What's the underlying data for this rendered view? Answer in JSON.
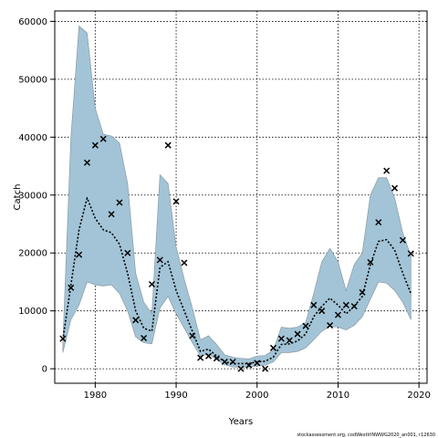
{
  "chart_data": {
    "type": "line",
    "title": "",
    "xlabel": "Years",
    "ylabel": "Catch",
    "xlim": [
      1975,
      2021
    ],
    "ylim": [
      -2500,
      61800
    ],
    "xticks": [
      1980,
      1990,
      2000,
      2010,
      2020
    ],
    "yticks": [
      0,
      10000,
      20000,
      30000,
      40000,
      50000,
      60000
    ],
    "grid": true,
    "legend": "none",
    "source_note": "stockassessment.org, codWestIrlNWWG2020_an001, r12630",
    "colors": {
      "band_fill": "#a2c4d6",
      "band_edge": "#8a9aa4",
      "line": "#000000",
      "points": "#000000",
      "grid": "#000000"
    },
    "series": [
      {
        "kind": "confidence-band",
        "x": [
          1976,
          1977,
          1978,
          1979,
          1980,
          1981,
          1982,
          1983,
          1984,
          1985,
          1986,
          1987,
          1988,
          1989,
          1990,
          1991,
          1992,
          1993,
          1994,
          1995,
          1996,
          1997,
          1998,
          1999,
          2000,
          2001,
          2002,
          2003,
          2004,
          2005,
          2006,
          2007,
          2008,
          2009,
          2010,
          2011,
          2012,
          2013,
          2014,
          2015,
          2016,
          2017,
          2018,
          2019
        ],
        "upper": [
          4500,
          40000,
          59200,
          58000,
          45000,
          40500,
          40200,
          39000,
          32000,
          16500,
          11500,
          9500,
          33500,
          32000,
          21000,
          15500,
          10500,
          5000,
          5700,
          4200,
          2400,
          2000,
          1800,
          1700,
          2200,
          2300,
          3200,
          7200,
          7000,
          7200,
          8000,
          13000,
          18500,
          20800,
          18500,
          13500,
          18000,
          20000,
          30000,
          33000,
          33000,
          29500,
          23500,
          19500
        ],
        "lower": [
          2800,
          8500,
          11000,
          15000,
          14500,
          14300,
          14500,
          13000,
          10000,
          5500,
          4500,
          4300,
          10500,
          12500,
          9500,
          7000,
          4500,
          2200,
          2500,
          1600,
          700,
          300,
          300,
          300,
          500,
          600,
          1200,
          2800,
          2800,
          3000,
          3600,
          5000,
          6500,
          7300,
          7200,
          6700,
          7500,
          9000,
          12000,
          15000,
          14800,
          13500,
          11500,
          8500
        ]
      },
      {
        "kind": "estimate-line",
        "x": [
          1976,
          1977,
          1978,
          1979,
          1980,
          1981,
          1982,
          1983,
          1984,
          1985,
          1986,
          1987,
          1988,
          1989,
          1990,
          1991,
          1992,
          1993,
          1994,
          1995,
          1996,
          1997,
          1998,
          1999,
          2000,
          2001,
          2002,
          2003,
          2004,
          2005,
          2006,
          2007,
          2008,
          2009,
          2010,
          2011,
          2012,
          2013,
          2014,
          2015,
          2016,
          2017,
          2018,
          2019
        ],
        "y": [
          5000,
          14500,
          24000,
          29500,
          26000,
          24000,
          23500,
          21500,
          16500,
          10000,
          7000,
          6500,
          17500,
          18500,
          13500,
          10000,
          6500,
          3000,
          3400,
          2200,
          1200,
          900,
          900,
          900,
          1200,
          1300,
          2000,
          4200,
          4300,
          4800,
          6000,
          9000,
          10800,
          12200,
          11000,
          9500,
          10800,
          12500,
          18000,
          22000,
          22300,
          20500,
          16500,
          13000
        ]
      },
      {
        "kind": "observed-points",
        "x": [
          1976,
          1977,
          1978,
          1979,
          1980,
          1981,
          1982,
          1983,
          1984,
          1985,
          1986,
          1987,
          1988,
          1989,
          1990,
          1991,
          1992,
          1993,
          1994,
          1995,
          1996,
          1997,
          1998,
          1999,
          2000,
          2001,
          2002,
          2003,
          2004,
          2005,
          2006,
          2007,
          2008,
          2009,
          2010,
          2011,
          2012,
          2013,
          2014,
          2015,
          2016,
          2017,
          2018,
          2019
        ],
        "y": [
          5200,
          14000,
          19700,
          35600,
          38600,
          39700,
          26700,
          28700,
          20000,
          8400,
          5300,
          14600,
          18800,
          38600,
          28900,
          18300,
          5700,
          1900,
          2200,
          1800,
          1200,
          1200,
          0,
          600,
          1000,
          0,
          3600,
          5200,
          4900,
          6000,
          7400,
          11000,
          10000,
          7500,
          9300,
          11000,
          10800,
          13200,
          18400,
          25300,
          34200,
          31200,
          22200,
          19900
        ]
      }
    ]
  }
}
